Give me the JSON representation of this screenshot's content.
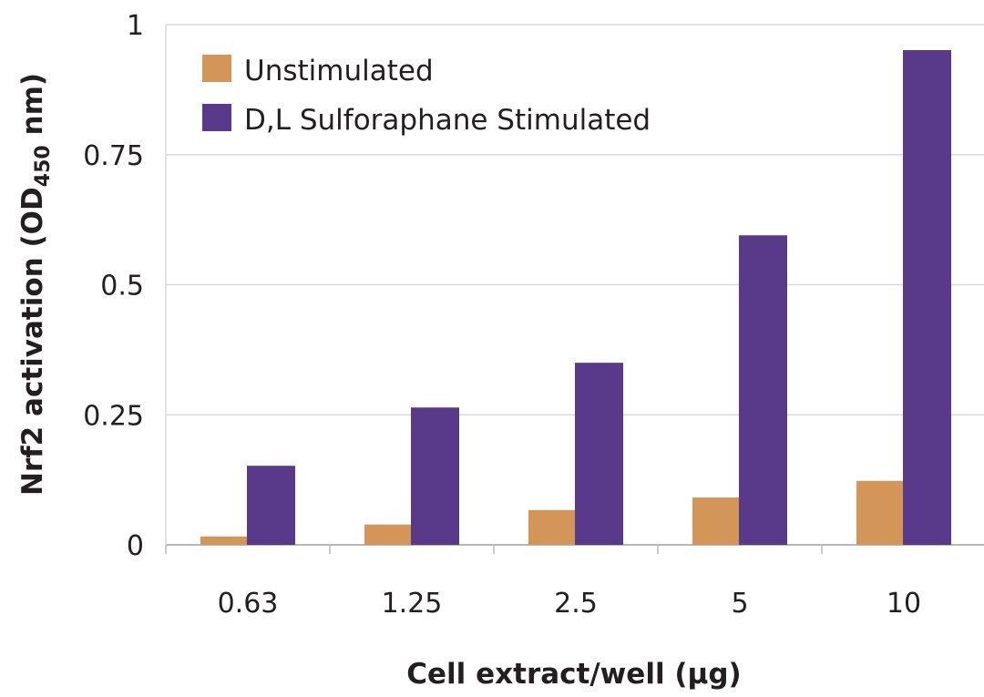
{
  "chart_data": {
    "type": "bar",
    "title": "",
    "xlabel": "Cell extract/well (µg)",
    "ylabel_main": "Nrf2 activation (OD",
    "ylabel_sub": "450",
    "ylabel_end": " nm)",
    "categories": [
      "0.63",
      "1.25",
      "2.5",
      "5",
      "10"
    ],
    "ylim": [
      0,
      1
    ],
    "yticks": [
      0,
      0.25,
      0.5,
      0.75,
      1
    ],
    "ytick_labels": [
      "0",
      "0.25",
      "0.5",
      "0.75",
      "1"
    ],
    "grid": true,
    "legend_position": "top-left",
    "series": [
      {
        "name": "Unstimulated",
        "color": "#d39558",
        "values": [
          0.016,
          0.039,
          0.067,
          0.091,
          0.123
        ]
      },
      {
        "name": "D,L Sulforaphane Stimulated",
        "color": "#59398a",
        "values": [
          0.152,
          0.264,
          0.35,
          0.595,
          0.951
        ]
      }
    ]
  }
}
